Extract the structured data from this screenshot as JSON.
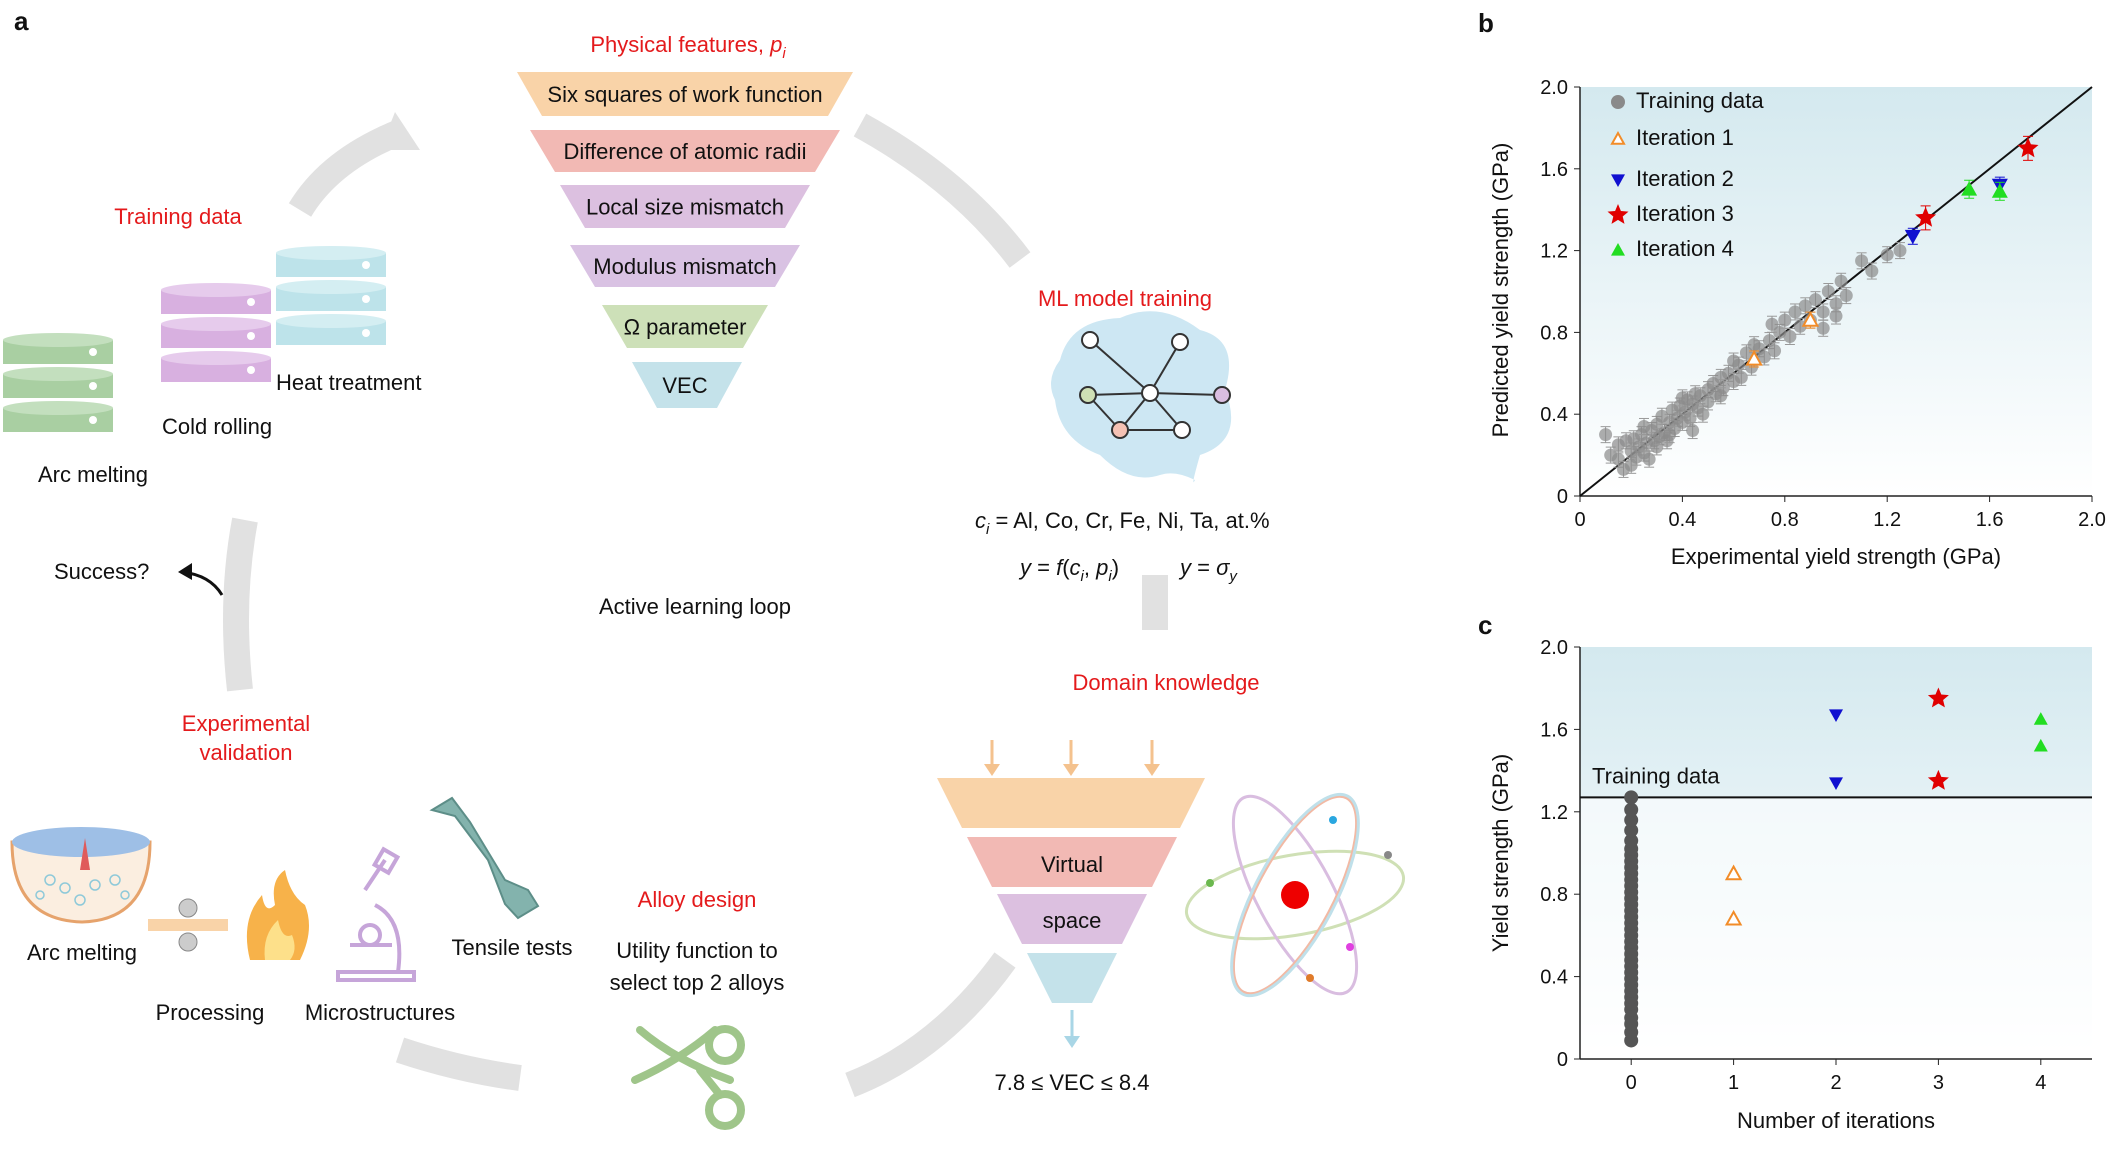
{
  "panel_a": {
    "label": "a",
    "physical_features_title": "Physical features, ",
    "physical_features_symbol": "p",
    "physical_features_sub": "i",
    "features": [
      "Six squares of work function",
      "Difference of atomic radii",
      "Local size mismatch",
      "Modulus mismatch",
      "Ω parameter",
      "VEC"
    ],
    "feature_colors": [
      "#f9d3a8",
      "#f2b9b4",
      "#dcc0e0",
      "#d9c2e3",
      "#cde0b8",
      "#c4e2ea"
    ],
    "training_data_title": "Training data",
    "heat_treatment": "Heat treatment",
    "cold_rolling": "Cold rolling",
    "arc_melting_top": "Arc melting",
    "ml_training_title": "ML model training",
    "composition_line": "c_i = Al, Co, Cr, Fe, Ni, Ta, at.%",
    "composition_ci": "c",
    "composition_sub": "i",
    "composition_rest": " = Al, Co, Cr, Fe, Ni, Ta, at.%",
    "eq1_y": "y",
    "eq1_mid": " = ",
    "eq1_f": "f",
    "eq1_open": "(",
    "eq1_c": "c",
    "eq1_ci_sub": "i",
    "eq1_comma": ", ",
    "eq1_p": "p",
    "eq1_pi_sub": "i",
    "eq1_close": ")",
    "eq2_y": "y",
    "eq2_eq": " = ",
    "eq2_sigma": "σ",
    "eq2_sub": "y",
    "success": "Success?",
    "loop_label": "Active learning loop",
    "domain_title": "Domain knowledge",
    "virtual": "Virtual",
    "space": "space",
    "vec_constraint": "7.8 ≤ VEC ≤ 8.4",
    "experimental_validation_1": "Experimental",
    "experimental_validation_2": "validation",
    "arc_melting_bottom": "Arc melting",
    "processing": "Processing",
    "microstructures": "Microstructures",
    "tensile_tests": "Tensile tests",
    "alloy_design_title": "Alloy design",
    "utility_1": "Utility function to",
    "utility_2": "select top 2 alloys"
  },
  "chart_data": [
    {
      "panel": "b",
      "type": "scatter",
      "xlabel": "Experimental yield strength (GPa)",
      "ylabel": "Predicted yield strength (GPa)",
      "xlim": [
        0,
        2.0
      ],
      "ylim": [
        0,
        2.0
      ],
      "xticks": [
        "0",
        "0.4",
        "0.8",
        "1.2",
        "1.6",
        "2.0"
      ],
      "yticks": [
        "0",
        "0.4",
        "0.8",
        "1.2",
        "1.6",
        "2.0"
      ],
      "legend_position": "top-left",
      "legend": [
        "Training data",
        "Iteration 1",
        "Iteration 2",
        "Iteration 3",
        "Iteration 4"
      ],
      "colors": {
        "training": "#777777",
        "iter1": "#f28c28",
        "iter2": "#1010d0",
        "iter3": "#e00000",
        "iter4": "#22dd22"
      },
      "diagonal": [
        [
          0,
          0
        ],
        [
          2,
          2
        ]
      ],
      "series": [
        {
          "name": "Training data",
          "points": [
            [
              0.1,
              0.3
            ],
            [
              0.12,
              0.2
            ],
            [
              0.15,
              0.18
            ],
            [
              0.15,
              0.25
            ],
            [
              0.17,
              0.13
            ],
            [
              0.18,
              0.27
            ],
            [
              0.2,
              0.15
            ],
            [
              0.2,
              0.22
            ],
            [
              0.21,
              0.28
            ],
            [
              0.22,
              0.19
            ],
            [
              0.23,
              0.24
            ],
            [
              0.24,
              0.3
            ],
            [
              0.25,
              0.21
            ],
            [
              0.25,
              0.34
            ],
            [
              0.26,
              0.26
            ],
            [
              0.27,
              0.18
            ],
            [
              0.28,
              0.32
            ],
            [
              0.29,
              0.27
            ],
            [
              0.3,
              0.35
            ],
            [
              0.3,
              0.24
            ],
            [
              0.31,
              0.29
            ],
            [
              0.32,
              0.39
            ],
            [
              0.33,
              0.31
            ],
            [
              0.34,
              0.27
            ],
            [
              0.35,
              0.36
            ],
            [
              0.36,
              0.42
            ],
            [
              0.37,
              0.33
            ],
            [
              0.38,
              0.38
            ],
            [
              0.39,
              0.44
            ],
            [
              0.4,
              0.36
            ],
            [
              0.41,
              0.41
            ],
            [
              0.42,
              0.47
            ],
            [
              0.43,
              0.38
            ],
            [
              0.44,
              0.45
            ],
            [
              0.45,
              0.5
            ],
            [
              0.46,
              0.43
            ],
            [
              0.47,
              0.49
            ],
            [
              0.48,
              0.4
            ],
            [
              0.5,
              0.52
            ],
            [
              0.5,
              0.46
            ],
            [
              0.52,
              0.55
            ],
            [
              0.53,
              0.5
            ],
            [
              0.55,
              0.58
            ],
            [
              0.56,
              0.53
            ],
            [
              0.58,
              0.6
            ],
            [
              0.6,
              0.56
            ],
            [
              0.62,
              0.64
            ],
            [
              0.63,
              0.58
            ],
            [
              0.65,
              0.7
            ],
            [
              0.67,
              0.63
            ],
            [
              0.7,
              0.72
            ],
            [
              0.72,
              0.68
            ],
            [
              0.74,
              0.76
            ],
            [
              0.76,
              0.71
            ],
            [
              0.78,
              0.8
            ],
            [
              0.8,
              0.86
            ],
            [
              0.82,
              0.78
            ],
            [
              0.84,
              0.9
            ],
            [
              0.86,
              0.83
            ],
            [
              0.88,
              0.93
            ],
            [
              0.9,
              0.86
            ],
            [
              0.92,
              0.96
            ],
            [
              0.95,
              0.9
            ],
            [
              0.97,
              1.0
            ],
            [
              1.0,
              0.94
            ],
            [
              1.02,
              1.05
            ],
            [
              1.04,
              0.98
            ],
            [
              1.1,
              1.15
            ],
            [
              1.14,
              1.1
            ],
            [
              1.2,
              1.18
            ],
            [
              1.25,
              1.2
            ],
            [
              0.35,
              0.3
            ],
            [
              0.4,
              0.48
            ],
            [
              0.55,
              0.49
            ],
            [
              0.6,
              0.66
            ],
            [
              0.68,
              0.74
            ],
            [
              0.75,
              0.84
            ],
            [
              0.95,
              0.82
            ],
            [
              1.0,
              0.88
            ],
            [
              0.44,
              0.32
            ]
          ]
        },
        {
          "name": "Iteration 1",
          "points": [
            [
              0.68,
              0.67
            ],
            [
              0.9,
              0.86
            ]
          ]
        },
        {
          "name": "Iteration 2",
          "points": [
            [
              1.3,
              1.27
            ],
            [
              1.64,
              1.52
            ]
          ]
        },
        {
          "name": "Iteration 3",
          "points": [
            [
              1.35,
              1.36
            ],
            [
              1.75,
              1.7
            ]
          ]
        },
        {
          "name": "Iteration 4",
          "points": [
            [
              1.52,
              1.5
            ],
            [
              1.64,
              1.49
            ]
          ]
        }
      ]
    },
    {
      "panel": "c",
      "type": "scatter",
      "xlabel": "Number of iterations",
      "ylabel": "Yield strength (GPa)",
      "xlim": [
        -0.5,
        4.5
      ],
      "ylim": [
        0,
        2.0
      ],
      "xticks": [
        "0",
        "1",
        "2",
        "3",
        "4"
      ],
      "yticks": [
        "0",
        "0.4",
        "0.8",
        "1.2",
        "1.6",
        "2.0"
      ],
      "threshold_label": "Training data",
      "threshold_value": 1.27,
      "series": [
        {
          "name": "Training data",
          "x": 0,
          "values": [
            0.09,
            0.13,
            0.17,
            0.2,
            0.24,
            0.27,
            0.3,
            0.33,
            0.36,
            0.39,
            0.42,
            0.45,
            0.48,
            0.51,
            0.54,
            0.57,
            0.6,
            0.63,
            0.66,
            0.69,
            0.72,
            0.75,
            0.78,
            0.81,
            0.84,
            0.87,
            0.9,
            0.93,
            0.96,
            0.99,
            1.02,
            1.06,
            1.11,
            1.16,
            1.21,
            1.27
          ]
        },
        {
          "name": "Iteration 1",
          "x": 1,
          "values": [
            0.68,
            0.9
          ]
        },
        {
          "name": "Iteration 2",
          "x": 2,
          "values": [
            1.34,
            1.67
          ]
        },
        {
          "name": "Iteration 3",
          "x": 3,
          "values": [
            1.35,
            1.75
          ]
        },
        {
          "name": "Iteration 4",
          "x": 4,
          "values": [
            1.52,
            1.65
          ]
        }
      ]
    }
  ]
}
